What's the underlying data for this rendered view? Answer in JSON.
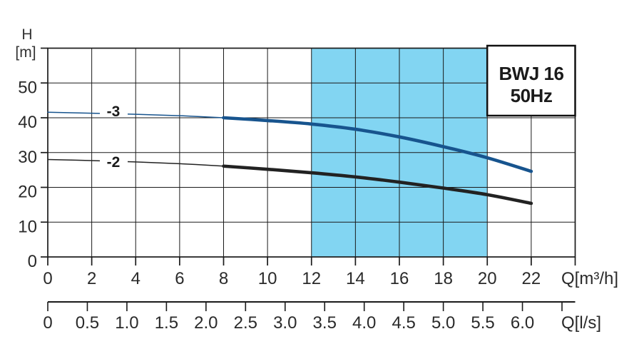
{
  "title_box": {
    "line1": "BWJ 16",
    "line2": "50Hz"
  },
  "labels": {
    "y_title_1": "H",
    "y_title_2": "[m]",
    "x_unit_primary": "Q[m³/h]",
    "x_unit_secondary": "Q[l/s]"
  },
  "colors": {
    "grid": "#1a1a1a",
    "border": "#1a1a1a",
    "tick": "#1a1a1a",
    "highlight_band": "#82d5f2",
    "curve_3": "#17548e",
    "curve_2": "#222222",
    "background": "#ffffff"
  },
  "chart_data": {
    "type": "line",
    "title": "BWJ 16 50Hz",
    "xlabel": "Q[m³/h]",
    "x2label": "Q[l/s]",
    "ylabel": "H [m]",
    "x": [
      0,
      2,
      4,
      6,
      8,
      10,
      12,
      14,
      16,
      18,
      20,
      22
    ],
    "series": [
      {
        "name": "-3",
        "color": "#17548e",
        "values": [
          41.6,
          41.3,
          41.0,
          40.6,
          40.0,
          39.2,
          38.2,
          36.7,
          34.5,
          31.7,
          28.5,
          24.6
        ]
      },
      {
        "name": "-2",
        "color": "#222222",
        "values": [
          28.0,
          27.7,
          27.3,
          26.8,
          26.1,
          25.2,
          24.2,
          23.0,
          21.5,
          19.8,
          17.9,
          15.4
        ]
      }
    ],
    "xlim": [
      0,
      24
    ],
    "ylim": [
      0,
      60
    ],
    "x_ticks": [
      0,
      2,
      4,
      6,
      8,
      10,
      12,
      14,
      16,
      18,
      20,
      22
    ],
    "y_ticks": [
      0,
      10,
      20,
      30,
      40,
      50
    ],
    "secondary_x_tick_labels": [
      "0",
      "0.5",
      "1.0",
      "1.5",
      "2.0",
      "2.5",
      "3.0",
      "3.5",
      "4.0",
      "4.5",
      "5.0",
      "5.5",
      "6.0"
    ],
    "secondary_tick_step_ls": 0.5,
    "secondary_extra_unlabeled_tick_ls": 6.5,
    "ls_to_m3h_factor": 3.6,
    "highlight_x_range": [
      12,
      20
    ],
    "bold_from_x": 8,
    "grid": true,
    "legend_position": "inline-curve-labels"
  }
}
